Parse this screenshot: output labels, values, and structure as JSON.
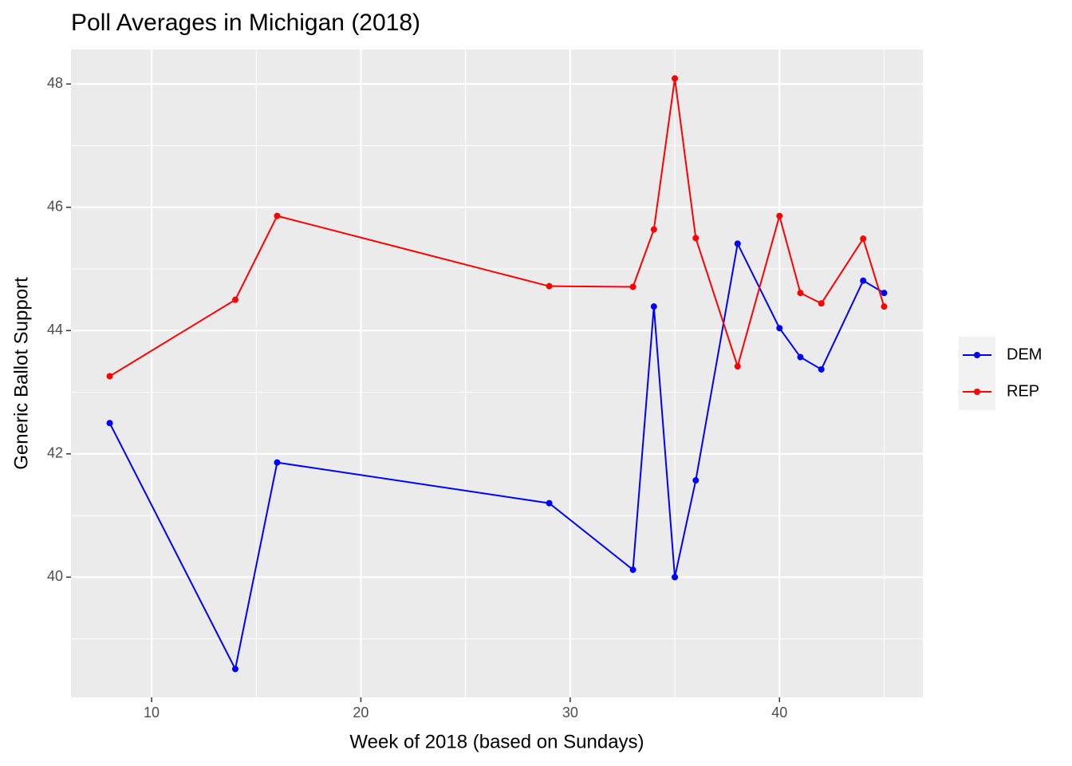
{
  "chart_data": {
    "type": "line",
    "title": "Poll Averages in Michigan (2018)",
    "x_label": "Week of 2018 (based on Sundays)",
    "y_label": "Generic Ballot Support",
    "x": [
      8,
      14,
      16,
      29,
      33,
      34,
      35,
      36,
      38,
      40,
      41,
      42,
      44,
      45
    ],
    "series": [
      {
        "name": "DEM",
        "color": "#0000ff",
        "values": [
          42.5,
          38.51,
          41.86,
          41.2,
          40.12,
          44.39,
          40.0,
          41.57,
          45.41,
          44.04,
          43.57,
          43.37,
          44.81,
          44.61
        ]
      },
      {
        "name": "REP",
        "color": "#ff0000",
        "values": [
          43.26,
          44.5,
          45.86,
          44.72,
          44.71,
          45.64,
          48.09,
          45.5,
          43.42,
          45.86,
          44.61,
          44.44,
          45.49,
          44.39
        ]
      }
    ],
    "xlim": [
      6.15,
      46.85
    ],
    "ylim": [
      38.05,
      48.56
    ],
    "xticks": [
      10,
      20,
      30,
      40
    ],
    "yticks": [
      40,
      42,
      44,
      46,
      48
    ],
    "xticks_minor": [
      15,
      25,
      35,
      45
    ],
    "yticks_minor": [
      39,
      41,
      43,
      45,
      47
    ],
    "grid": true,
    "legend": "right"
  }
}
